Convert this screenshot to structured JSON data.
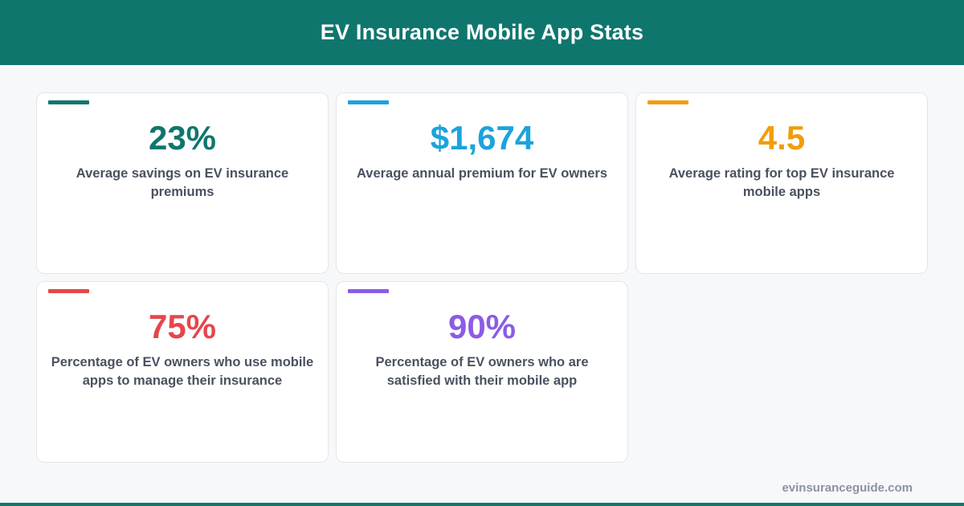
{
  "header": {
    "title": "EV Insurance Mobile App Stats"
  },
  "colors": {
    "header_bg": "#0f766e",
    "footer_bar": "#0f766e",
    "label_text": "#4a5160"
  },
  "stats": [
    {
      "value": "23%",
      "label": "Average savings on EV insurance premiums",
      "color": "#0f766e"
    },
    {
      "value": "$1,674",
      "label": "Average annual premium for EV owners",
      "color": "#1ba3dd"
    },
    {
      "value": "4.5",
      "label": "Average rating for top EV insurance mobile apps",
      "color": "#f29d0b"
    },
    {
      "value": "75%",
      "label": "Percentage of EV owners who use mobile apps to manage their insurance",
      "color": "#e5474b"
    },
    {
      "value": "90%",
      "label": "Percentage of EV owners who are satisfied with their mobile app",
      "color": "#8b5ce6"
    }
  ],
  "footer": {
    "site": "evinsuranceguide.com"
  }
}
